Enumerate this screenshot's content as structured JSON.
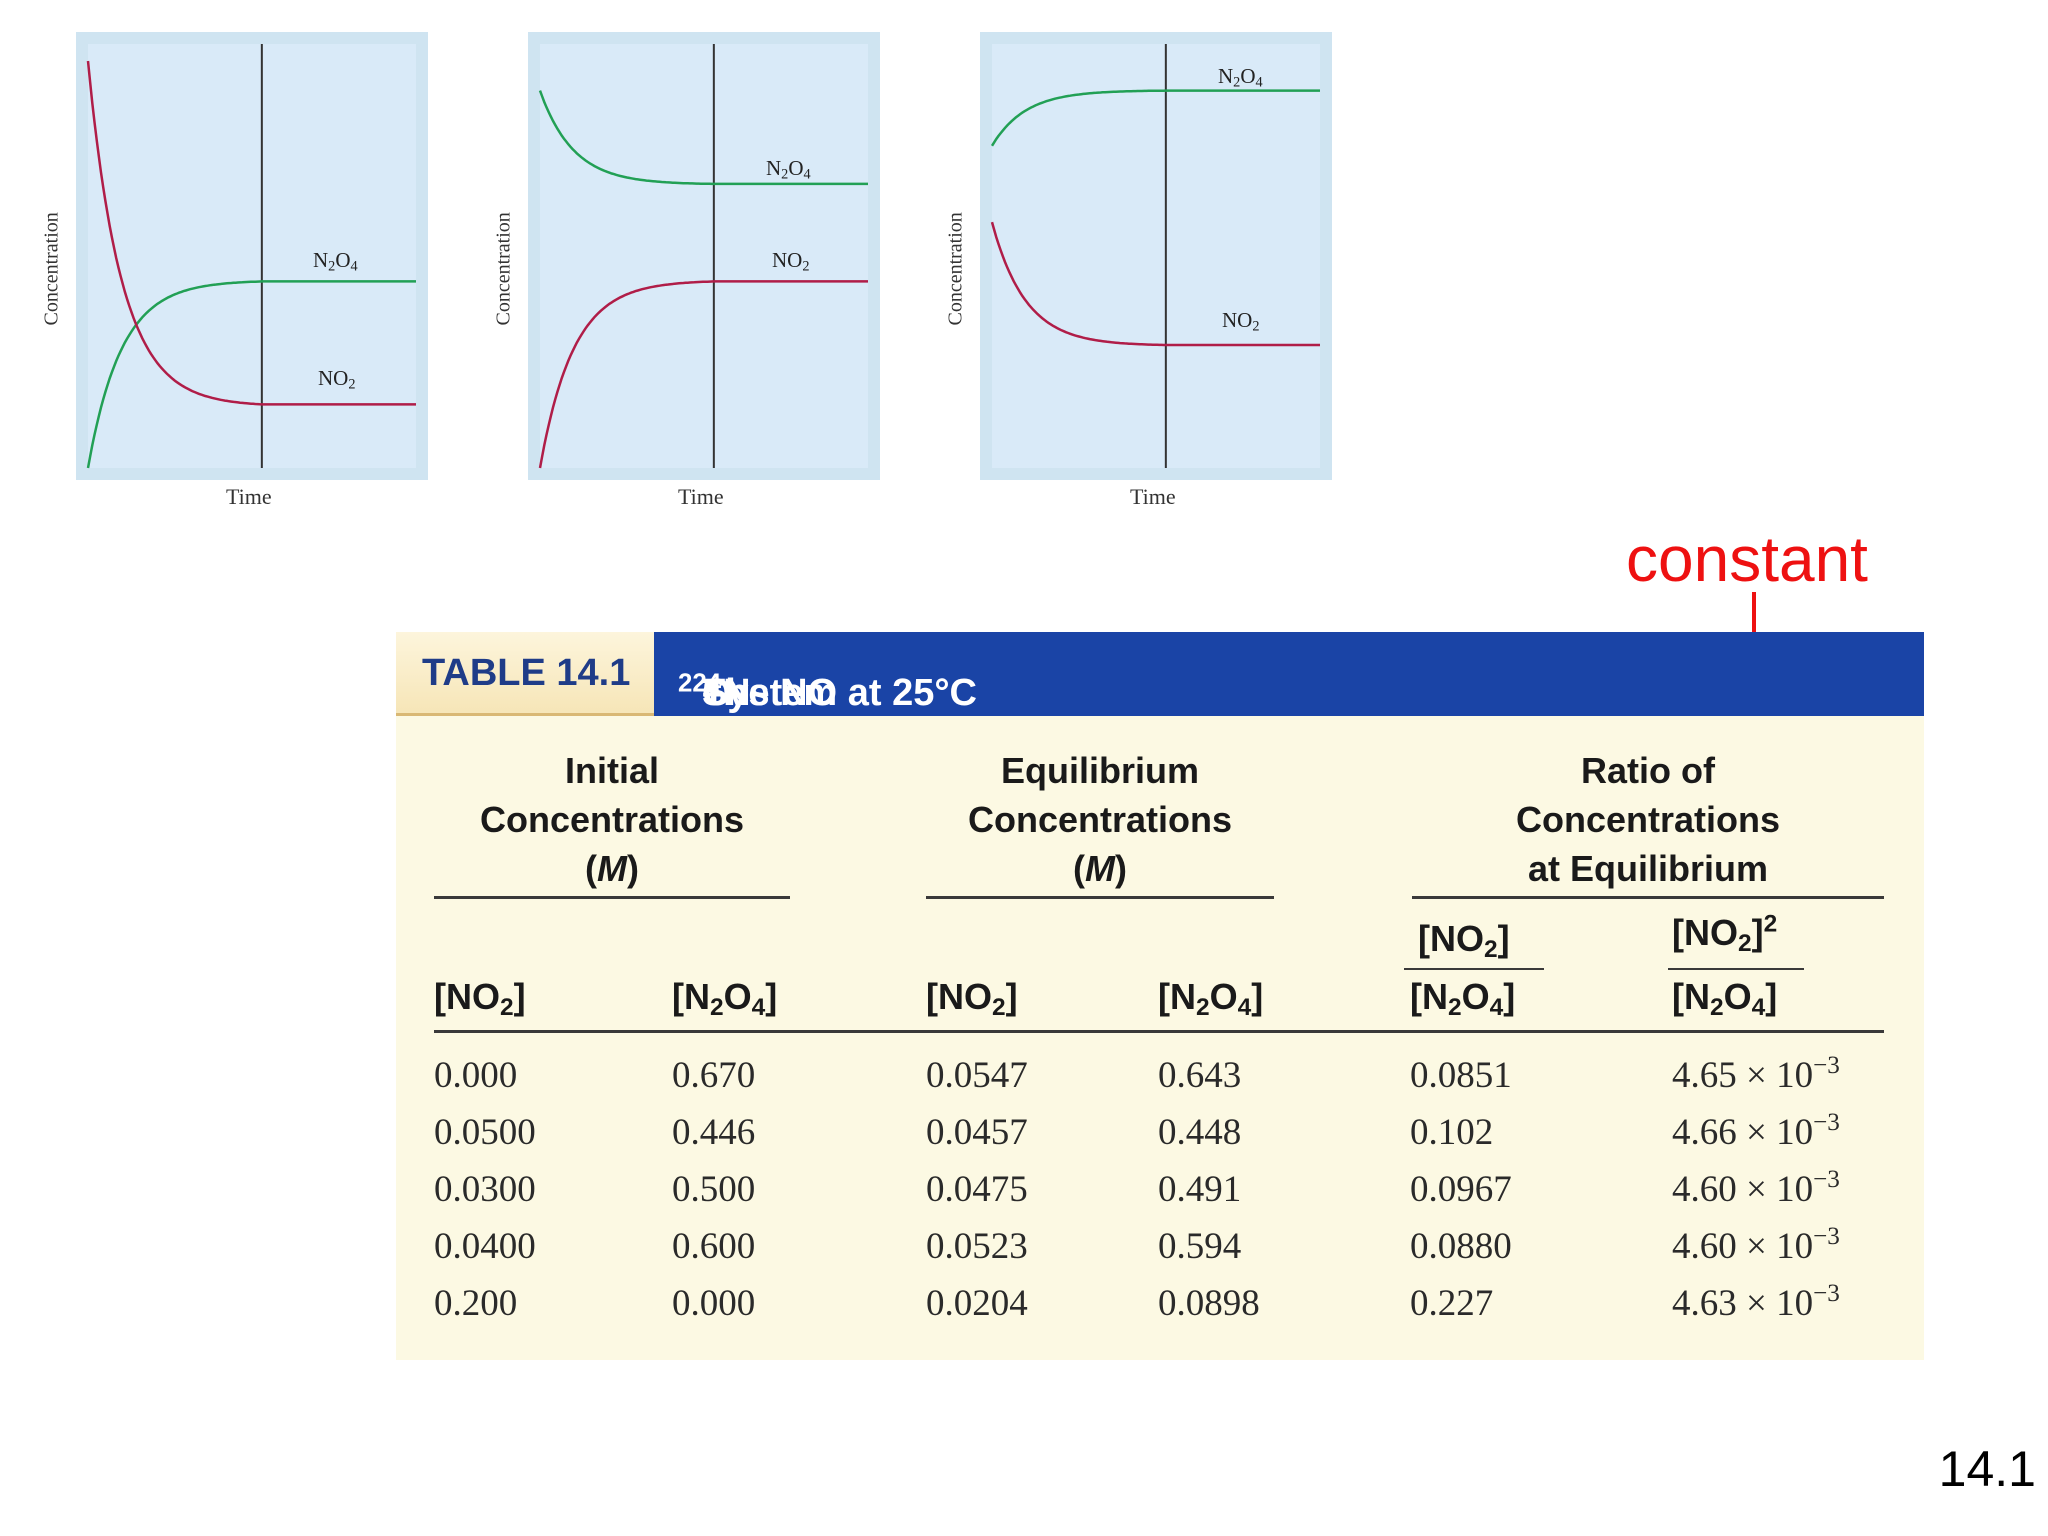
{
  "chart_data": [
    {
      "type": "line",
      "xlabel": "Time",
      "ylabel": "Concentration",
      "series": [
        {
          "name": "N2O4",
          "color": "#22a055",
          "start": 0.0,
          "end": 0.44,
          "equilibrium_time": 0.53
        },
        {
          "name": "NO2",
          "color": "#b01d48",
          "start": 0.96,
          "end": 0.15,
          "equilibrium_time": 0.53
        }
      ]
    },
    {
      "type": "line",
      "xlabel": "Time",
      "ylabel": "Concentration",
      "series": [
        {
          "name": "N2O4",
          "color": "#22a055",
          "start": 0.89,
          "end": 0.67,
          "equilibrium_time": 0.53
        },
        {
          "name": "NO2",
          "color": "#b01d48",
          "start": 0.0,
          "end": 0.44,
          "equilibrium_time": 0.53
        }
      ]
    },
    {
      "type": "line",
      "xlabel": "Time",
      "ylabel": "Concentration",
      "series": [
        {
          "name": "N2O4",
          "color": "#22a055",
          "start": 0.76,
          "end": 0.89,
          "equilibrium_time": 0.53
        },
        {
          "name": "NO2",
          "color": "#b01d48",
          "start": 0.58,
          "end": 0.29,
          "equilibrium_time": 0.53
        }
      ]
    },
    {
      "type": "table",
      "title_label": "TABLE 14.1",
      "title_text": "The NO₂–N₂O₄ System at 25°C",
      "group_headers": [
        [
          "Initial",
          "Concentrations",
          "(M)"
        ],
        [
          "Equilibrium",
          "Concentrations",
          "(M)"
        ],
        [
          "Ratio of",
          "Concentrations",
          "at Equilibrium"
        ]
      ],
      "column_headers": [
        "[NO₂]",
        "[N₂O₄]",
        "[NO₂]",
        "[N₂O₄]",
        "[NO₂] / [N₂O₄]",
        "[NO₂]² / [N₂O₄]"
      ],
      "rows": [
        [
          "0.000",
          "0.670",
          "0.0547",
          "0.643",
          "0.0851",
          "4.65 × 10⁻³"
        ],
        [
          "0.0500",
          "0.446",
          "0.0457",
          "0.448",
          "0.102",
          "4.66 × 10⁻³"
        ],
        [
          "0.0300",
          "0.500",
          "0.0475",
          "0.491",
          "0.0967",
          "4.60 × 10⁻³"
        ],
        [
          "0.0400",
          "0.600",
          "0.0523",
          "0.594",
          "0.0880",
          "4.60 × 10⁻³"
        ],
        [
          "0.200",
          "0.000",
          "0.0204",
          "0.0898",
          "0.227",
          "4.63 × 10⁻³"
        ]
      ]
    }
  ],
  "plot_text": {
    "xlabel": "Time",
    "ylabel": "Concentration",
    "n2o4_label": "N",
    "no2_label": "NO"
  },
  "annotation": {
    "text": "constant",
    "color": "#ee1111"
  },
  "table_text": {
    "label": "TABLE 14.1",
    "title_a": "The NO",
    "title_sub1": "2",
    "title_b": "–N",
    "title_sub2": "2",
    "title_c": "O",
    "title_sub3": "4",
    "title_d": " System at 25°C",
    "g1": [
      "Initial",
      "Concentrations",
      "M"
    ],
    "g2": [
      "Equilibrium",
      "Concentrations",
      "M"
    ],
    "g3": [
      "Ratio of",
      "Concentrations",
      "at Equilibrium"
    ],
    "h_no2": "[NO",
    "h_n2o4_a": "[N",
    "h_n2o4_b": "O",
    "rows": [
      [
        "0.000",
        "0.670",
        "0.0547",
        "0.643",
        "0.0851",
        "4.65 × 10"
      ],
      [
        "0.0500",
        "0.446",
        "0.0457",
        "0.448",
        "0.102",
        "4.66 × 10"
      ],
      [
        "0.0300",
        "0.500",
        "0.0475",
        "0.491",
        "0.0967",
        "4.60 × 10"
      ],
      [
        "0.0400",
        "0.600",
        "0.0523",
        "0.594",
        "0.0880",
        "4.60 × 10"
      ],
      [
        "0.200",
        "0.000",
        "0.0204",
        "0.0898",
        "0.227",
        "4.63 × 10"
      ]
    ],
    "exponent": "−3"
  },
  "slide_number": "14.1"
}
